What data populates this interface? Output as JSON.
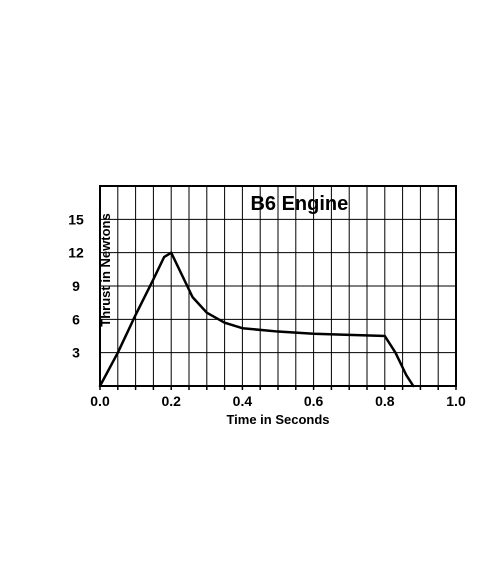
{
  "chart": {
    "type": "line",
    "title": "B6 Engine",
    "title_fontsize": 20,
    "title_fontweight": "bold",
    "xlabel": "Time in Seconds",
    "ylabel": "Thrust in Newtons",
    "label_fontsize": 13,
    "tick_fontsize": 14,
    "xlim": [
      0.0,
      1.0
    ],
    "ylim": [
      0,
      18
    ],
    "x_major_ticks": [
      0.0,
      0.2,
      0.4,
      0.6,
      0.8,
      1.0
    ],
    "x_minor_step": 0.05,
    "y_major_ticks": [
      3,
      6,
      9,
      12,
      15
    ],
    "y_minor_step": 3,
    "line_color": "#000000",
    "line_width": 2.5,
    "grid_color": "#000000",
    "grid_width": 1,
    "background_color": "#ffffff",
    "border_color": "#000000",
    "border_width": 2,
    "minor_tick_length": 4,
    "series": {
      "x": [
        0.0,
        0.05,
        0.1,
        0.15,
        0.18,
        0.2,
        0.23,
        0.26,
        0.3,
        0.35,
        0.4,
        0.5,
        0.6,
        0.7,
        0.8,
        0.83,
        0.86,
        0.88
      ],
      "y": [
        0.0,
        3.0,
        6.4,
        9.6,
        11.6,
        12.0,
        10.0,
        8.0,
        6.6,
        5.7,
        5.2,
        4.9,
        4.7,
        4.6,
        4.5,
        3.0,
        1.0,
        0.0
      ]
    }
  }
}
